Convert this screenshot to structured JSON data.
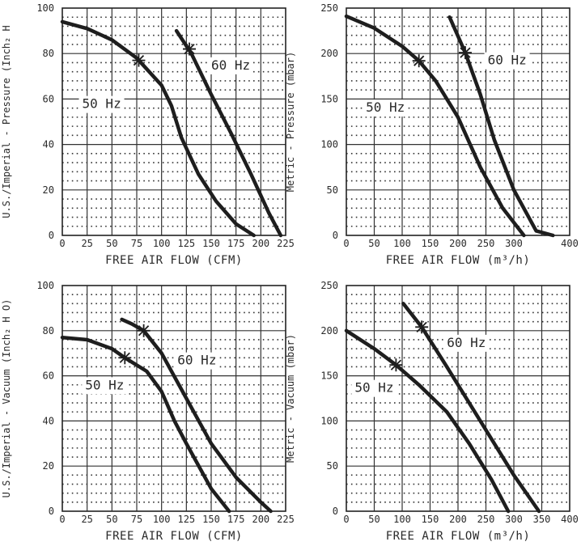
{
  "chart_data": [
    {
      "type": "line",
      "ylabel": "U.S./Imperial - Pressure (Inch₂ H",
      "xlabel": "FREE AIR FLOW (CFM)",
      "xlim": [
        0,
        225
      ],
      "ylim": [
        0,
        100
      ],
      "xticks": [
        "0",
        "25",
        "50",
        "75",
        "100",
        "125",
        "150",
        "175",
        "200",
        "225"
      ],
      "yticks": [
        "0",
        "20",
        "40",
        "60",
        "80",
        "100"
      ],
      "grid": true,
      "series": [
        {
          "name": "50 Hz",
          "label_at": [
            20,
            56
          ],
          "points": [
            [
              0,
              94
            ],
            [
              25,
              91
            ],
            [
              50,
              86
            ],
            [
              75,
              78
            ],
            [
              100,
              66
            ],
            [
              110,
              57
            ],
            [
              120,
              43
            ],
            [
              137,
              27
            ],
            [
              155,
              15
            ],
            [
              175,
              5
            ],
            [
              193,
              0
            ]
          ],
          "marker": [
            77,
            77
          ]
        },
        {
          "name": "60 Hz",
          "label_at": [
            150,
            73
          ],
          "points": [
            [
              115,
              90
            ],
            [
              130,
              80
            ],
            [
              150,
              62
            ],
            [
              170,
              45
            ],
            [
              190,
              27
            ],
            [
              208,
              10
            ],
            [
              220,
              0
            ]
          ],
          "marker": [
            128,
            82
          ]
        }
      ]
    },
    {
      "type": "line",
      "ylabel": "Metric - Pressure (mbar)",
      "xlabel": "FREE AIR FLOW (m³/h)",
      "xlim": [
        0,
        400
      ],
      "ylim": [
        0,
        250
      ],
      "xticks": [
        "0",
        "50",
        "100",
        "150",
        "200",
        "250",
        "300",
        "400"
      ],
      "yticks": [
        "0",
        "50",
        "100",
        "150",
        "200",
        "250"
      ],
      "grid": true,
      "series": [
        {
          "name": "50 Hz",
          "label_at": [
            35,
            136
          ],
          "points": [
            [
              0,
              241
            ],
            [
              50,
              228
            ],
            [
              100,
              208
            ],
            [
              130,
              192
            ],
            [
              160,
              170
            ],
            [
              200,
              130
            ],
            [
              240,
              75
            ],
            [
              280,
              30
            ],
            [
              318,
              0
            ]
          ],
          "marker": [
            130,
            192
          ]
        },
        {
          "name": "60 Hz",
          "label_at": [
            253,
            188
          ],
          "points": [
            [
              185,
              240
            ],
            [
              213,
              201
            ],
            [
              240,
              155
            ],
            [
              265,
              105
            ],
            [
              300,
              50
            ],
            [
              340,
              5
            ],
            [
              370,
              0
            ]
          ],
          "marker": [
            213,
            201
          ]
        }
      ]
    },
    {
      "type": "line",
      "ylabel": "U.S./Imperial - Vacuum (Inch₂ H O)",
      "xlabel": "FREE AIR FLOW (CFM)",
      "xlim": [
        0,
        225
      ],
      "ylim": [
        0,
        100
      ],
      "xticks": [
        "0",
        "25",
        "50",
        "75",
        "100",
        "125",
        "150",
        "175",
        "200",
        "225"
      ],
      "yticks": [
        "0",
        "20",
        "40",
        "60",
        "80",
        "100"
      ],
      "grid": true,
      "series": [
        {
          "name": "50 Hz",
          "label_at": [
            23,
            54
          ],
          "points": [
            [
              0,
              77
            ],
            [
              25,
              76
            ],
            [
              50,
              72
            ],
            [
              63,
              68
            ],
            [
              85,
              62
            ],
            [
              100,
              53
            ],
            [
              113,
              40
            ],
            [
              125,
              30
            ],
            [
              150,
              10
            ],
            [
              168,
              0
            ]
          ],
          "marker": [
            63,
            68
          ]
        },
        {
          "name": "60 Hz",
          "label_at": [
            116,
            65
          ],
          "points": [
            [
              60,
              85
            ],
            [
              70,
              83
            ],
            [
              82,
              80
            ],
            [
              100,
              70
            ],
            [
              125,
              50
            ],
            [
              150,
              30
            ],
            [
              175,
              15
            ],
            [
              200,
              4
            ],
            [
              210,
              0
            ]
          ],
          "marker": [
            82,
            80
          ]
        }
      ]
    },
    {
      "type": "line",
      "ylabel": "Metric - Vacuum (mbar)",
      "xlabel": "FREE AIR FLOW (m³/h)",
      "xlim": [
        0,
        400
      ],
      "ylim": [
        0,
        250
      ],
      "xticks": [
        "0",
        "50",
        "100",
        "150",
        "200",
        "250",
        "300",
        "350",
        "400"
      ],
      "yticks": [
        "0",
        "50",
        "100",
        "150",
        "200",
        "250"
      ],
      "grid": true,
      "series": [
        {
          "name": "50 Hz",
          "label_at": [
            15,
            132
          ],
          "points": [
            [
              0,
              200
            ],
            [
              50,
              180
            ],
            [
              89,
              162
            ],
            [
              130,
              140
            ],
            [
              180,
              110
            ],
            [
              220,
              75
            ],
            [
              260,
              35
            ],
            [
              290,
              0
            ]
          ],
          "marker": [
            89,
            162
          ]
        },
        {
          "name": "60 Hz",
          "label_at": [
            180,
            182
          ],
          "points": [
            [
              102,
              230
            ],
            [
              135,
              204
            ],
            [
              180,
              160
            ],
            [
              240,
              100
            ],
            [
              300,
              40
            ],
            [
              345,
              0
            ]
          ],
          "marker": [
            135,
            204
          ]
        }
      ]
    }
  ]
}
